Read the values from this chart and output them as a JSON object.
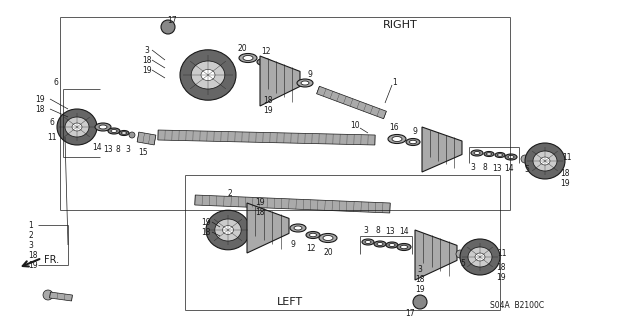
{
  "bg_color": "#ffffff",
  "line_color": "#1a1a1a",
  "text_color": "#1a1a1a",
  "fig_width": 6.33,
  "fig_height": 3.2,
  "dpi": 100,
  "label_RIGHT": "RIGHT",
  "label_LEFT": "LEFT",
  "label_FR": "FR.",
  "label_code": "S04A  B2100C",
  "gray_dark": "#555555",
  "gray_mid": "#888888",
  "gray_light": "#bbbbbb",
  "gray_lightest": "#dddddd",
  "part_numbers_legend": [
    "1",
    "2",
    "3",
    "18",
    "19"
  ]
}
